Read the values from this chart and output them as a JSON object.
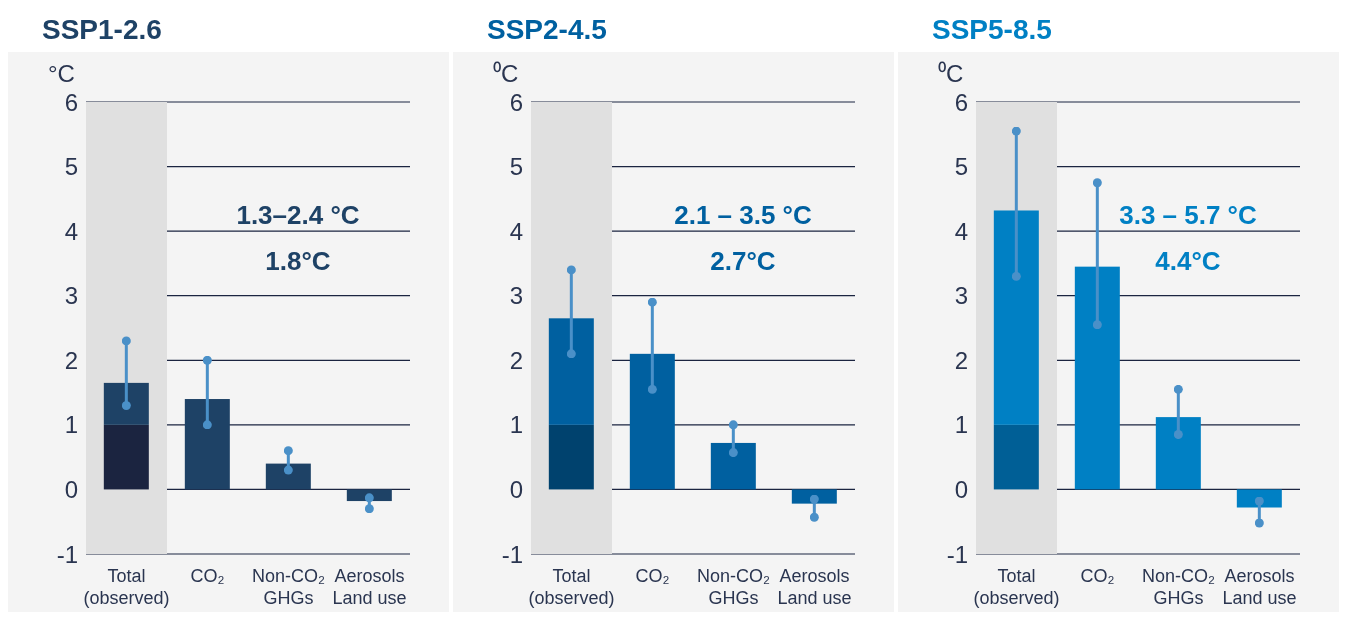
{
  "chart_data": [
    {
      "type": "bar",
      "title": "SSP1-2.6",
      "ylabel": "°C",
      "categories": [
        "Total\n(observed)",
        "CO₂",
        "Non-CO₂\nGHGs",
        "Aerosols\nLand use"
      ],
      "stacked": true,
      "ylim": [
        -1,
        6
      ],
      "yticks": [
        -1,
        0,
        1,
        2,
        3,
        4,
        5,
        6
      ],
      "grid": "y",
      "series": [
        {
          "color": "#1b2440",
          "values": [
            1.0,
            null,
            null,
            null
          ]
        },
        {
          "color": "#1e4266",
          "values": [
            0.65,
            1.4,
            0.4,
            -0.18
          ],
          "errors": [
            [
              1.3,
              2.3
            ],
            [
              1.0,
              2.0
            ],
            [
              0.3,
              0.6
            ],
            [
              -0.3,
              -0.13
            ]
          ]
        }
      ],
      "bands": [
        {
          "axis": "x",
          "from": "Total\n(observed)",
          "to": "Total\n(observed)",
          "color": "#e0e0e0"
        }
      ],
      "annotations": [
        "1.3–2.4 °C",
        "1.8°C"
      ]
    },
    {
      "type": "bar",
      "title": "SSP2-4.5",
      "ylabel": "⁰C",
      "categories": [
        "Total\n(observed)",
        "CO₂",
        "Non-CO₂\nGHGs",
        "Aerosols\nLand use"
      ],
      "stacked": true,
      "ylim": [
        -1,
        6
      ],
      "yticks": [
        -1,
        0,
        1,
        2,
        3,
        4,
        5,
        6
      ],
      "grid": "y",
      "series": [
        {
          "color": "#00426e",
          "values": [
            1.0,
            null,
            null,
            null
          ]
        },
        {
          "color": "#0060a0",
          "values": [
            1.65,
            2.1,
            0.72,
            -0.22
          ],
          "errors": [
            [
              2.1,
              3.4
            ],
            [
              1.55,
              2.9
            ],
            [
              0.57,
              1.0
            ],
            [
              -0.43,
              -0.15
            ]
          ]
        }
      ],
      "bands": [
        {
          "axis": "x",
          "from": "Total\n(observed)",
          "to": "Total\n(observed)",
          "color": "#e0e0e0"
        }
      ],
      "annotations": [
        "2.1 – 3.5 °C",
        "2.7°C"
      ]
    },
    {
      "type": "bar",
      "title": "SSP5-8.5",
      "ylabel": "⁰C",
      "categories": [
        "Total\n(observed)",
        "CO₂",
        "Non-CO₂\nGHGs",
        "Aerosols\nLand use"
      ],
      "stacked": true,
      "ylim": [
        -1,
        6
      ],
      "yticks": [
        -1,
        0,
        1,
        2,
        3,
        4,
        5,
        6
      ],
      "grid": "y",
      "series": [
        {
          "color": "#005f96",
          "values": [
            1.0,
            null,
            null,
            null
          ]
        },
        {
          "color": "#0080c4",
          "values": [
            3.32,
            3.45,
            1.12,
            -0.28
          ],
          "errors": [
            [
              3.3,
              5.55
            ],
            [
              2.55,
              4.75
            ],
            [
              0.85,
              1.55
            ],
            [
              -0.52,
              -0.18
            ]
          ]
        }
      ],
      "bands": [
        {
          "axis": "x",
          "from": "Total\n(observed)",
          "to": "Total\n(observed)",
          "color": "#e0e0e0"
        }
      ],
      "annotations": [
        "3.3 – 5.7 °C",
        "4.4°C"
      ]
    }
  ]
}
